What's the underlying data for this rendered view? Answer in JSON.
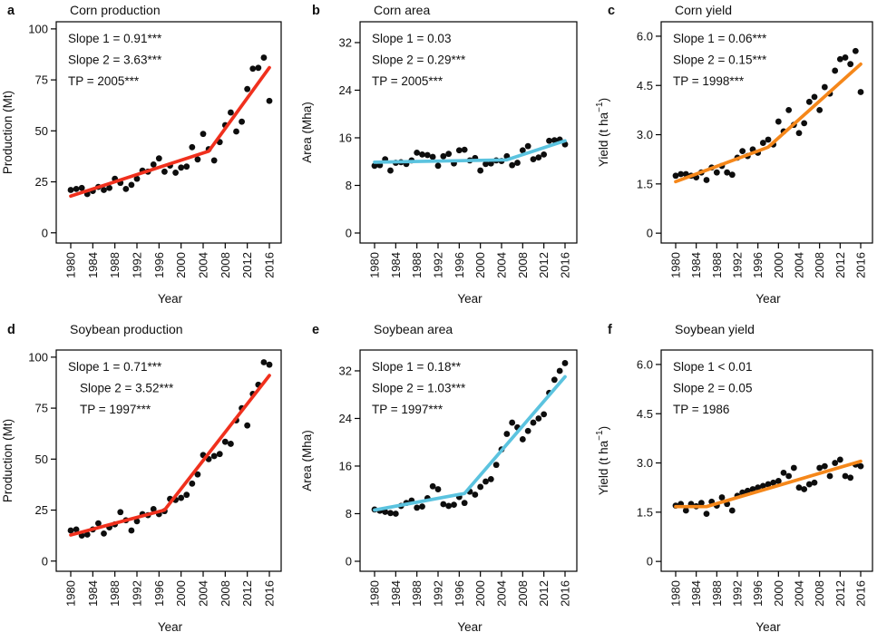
{
  "chart_data": {
    "type": "scatter",
    "description": "Six-panel figure of segmented-regression trends, 1980-2016",
    "point_color": "#0d0d0d",
    "years": [
      1980,
      1981,
      1982,
      1983,
      1984,
      1985,
      1986,
      1987,
      1988,
      1989,
      1990,
      1991,
      1992,
      1993,
      1994,
      1995,
      1996,
      1997,
      1998,
      1999,
      2000,
      2001,
      2002,
      2003,
      2004,
      2005,
      2006,
      2007,
      2008,
      2009,
      2010,
      2011,
      2012,
      2013,
      2014,
      2015,
      2016
    ],
    "x_ticks": [
      1980,
      1984,
      1988,
      1992,
      1996,
      2000,
      2004,
      2008,
      2012,
      2016
    ],
    "panels": [
      {
        "letter": "a",
        "title": "Corn production",
        "xlabel": "Year",
        "ylabel": {
          "pre": "Production (Mt)",
          "sup": "",
          "post": ""
        },
        "annotations": [
          {
            "text": "Slope 1 = 0.91***",
            "indent": 0
          },
          {
            "text": "Slope 2 = 3.63***",
            "indent": 0
          },
          {
            "text": "TP = 2005***",
            "indent": 0
          }
        ],
        "line_color": "#f0301d",
        "ylim": [
          -5,
          103.5
        ],
        "yticks": [
          0,
          25,
          50,
          75,
          100
        ],
        "ytick_labels": [
          "0",
          "25",
          "50",
          "75",
          "100"
        ],
        "values": [
          21,
          21.5,
          22,
          19,
          20.5,
          22.5,
          21,
          22,
          26.5,
          24.5,
          21.5,
          23.5,
          26.5,
          30.5,
          30,
          33.5,
          36.5,
          30,
          33,
          29.5,
          32,
          32.5,
          42,
          36,
          48.5,
          41,
          35.5,
          44.5,
          52.8,
          59,
          49.7,
          54.5,
          70.5,
          80.5,
          80.9,
          85.9,
          64.7
        ],
        "trend": [
          [
            1980,
            18
          ],
          [
            2005,
            40
          ],
          [
            2016,
            81
          ]
        ]
      },
      {
        "letter": "b",
        "title": "Corn area",
        "xlabel": "Year",
        "ylabel": {
          "pre": "Area (Mha)",
          "sup": "",
          "post": ""
        },
        "annotations": [
          {
            "text": "Slope 1 = 0.03",
            "indent": 0
          },
          {
            "text": "Slope 2 = 0.29***",
            "indent": 0
          },
          {
            "text": "TP = 2005***",
            "indent": 0
          }
        ],
        "line_color": "#5bc3df",
        "ylim": [
          -1.68,
          35.5
        ],
        "yticks": [
          0,
          8,
          16,
          24,
          32
        ],
        "ytick_labels": [
          "0",
          "8",
          "16",
          "24",
          "32"
        ],
        "values": [
          11.3,
          11.4,
          12.4,
          10.5,
          11.8,
          11.9,
          11.6,
          12.2,
          13.5,
          13.2,
          13.1,
          12.8,
          11.3,
          12.9,
          13.3,
          11.7,
          13.9,
          14.0,
          12.2,
          12.6,
          10.5,
          11.6,
          11.7,
          12.2,
          12.1,
          12.9,
          11.4,
          11.8,
          13.9,
          14.6,
          12.4,
          12.7,
          13.2,
          15.5,
          15.6,
          15.7,
          14.9
        ],
        "trend": [
          [
            1980,
            11.9
          ],
          [
            2005,
            12.3
          ],
          [
            2016,
            15.5
          ]
        ]
      },
      {
        "letter": "c",
        "title": "Corn yield",
        "xlabel": "Year",
        "ylabel": {
          "pre": "Yield (t ha",
          "sup": "−1",
          "post": ")"
        },
        "annotations": [
          {
            "text": "Slope 1 = 0.06***",
            "indent": 0
          },
          {
            "text": "Slope 2 = 0.15***",
            "indent": 0
          },
          {
            "text": "TP = 1998***",
            "indent": 0
          }
        ],
        "line_color": "#f5871a",
        "ylim": [
          -0.3,
          6.44
        ],
        "yticks": [
          0,
          1.5,
          3.0,
          4.5,
          6.0
        ],
        "ytick_labels": [
          "0",
          "1.5",
          "3.0",
          "4.5",
          "6.0"
        ],
        "values": [
          1.75,
          1.8,
          1.8,
          1.75,
          1.7,
          1.85,
          1.62,
          2.0,
          1.85,
          2.05,
          1.85,
          1.78,
          2.3,
          2.5,
          2.35,
          2.55,
          2.45,
          2.75,
          2.85,
          2.7,
          3.4,
          3.1,
          3.75,
          3.3,
          3.05,
          3.35,
          4.0,
          4.15,
          3.75,
          4.45,
          4.25,
          4.95,
          5.3,
          5.35,
          5.15,
          5.55,
          4.3
        ],
        "trend": [
          [
            1980,
            1.57
          ],
          [
            1998,
            2.62
          ],
          [
            2016,
            5.15
          ]
        ]
      },
      {
        "letter": "d",
        "title": "Soybean production",
        "xlabel": "Year",
        "ylabel": {
          "pre": "Production (Mt)",
          "sup": "",
          "post": ""
        },
        "annotations": [
          {
            "text": "Slope 1 = 0.71***",
            "indent": 0
          },
          {
            "text": "Slope 2 = 3.52***",
            "indent": 13
          },
          {
            "text": "TP = 1997***",
            "indent": 13
          }
        ],
        "line_color": "#f0301d",
        "ylim": [
          -5,
          103.5
        ],
        "yticks": [
          0,
          25,
          50,
          75,
          100
        ],
        "ytick_labels": [
          "0",
          "25",
          "50",
          "75",
          "100"
        ],
        "values": [
          15,
          15.5,
          12.5,
          13,
          15.5,
          18.5,
          13.5,
          16.5,
          18,
          24,
          20,
          15,
          19.5,
          23,
          22.5,
          25.5,
          23,
          24.5,
          30.5,
          30,
          31,
          32.5,
          38,
          42.5,
          52,
          50,
          51.5,
          52.5,
          58.5,
          57.5,
          69,
          75,
          66.5,
          82,
          86.5,
          97.5,
          96.3
        ],
        "trend": [
          [
            1980,
            12.8
          ],
          [
            1997,
            25
          ],
          [
            2016,
            91
          ]
        ]
      },
      {
        "letter": "e",
        "title": "Soybean area",
        "xlabel": "Year",
        "ylabel": {
          "pre": "Area (Mha)",
          "sup": "",
          "post": ""
        },
        "annotations": [
          {
            "text": "Slope 1 = 0.18**",
            "indent": 0
          },
          {
            "text": "Slope 2 = 1.03***",
            "indent": 0
          },
          {
            "text": "TP = 1997***",
            "indent": 0
          }
        ],
        "line_color": "#5bc3df",
        "ylim": [
          -1.68,
          35.5
        ],
        "yticks": [
          0,
          8,
          16,
          24,
          32
        ],
        "ytick_labels": [
          "0",
          "8",
          "16",
          "24",
          "32"
        ],
        "values": [
          8.7,
          8.5,
          8.3,
          8.1,
          8.0,
          9.3,
          9.8,
          10.2,
          9.0,
          9.2,
          10.6,
          12.6,
          12.1,
          9.6,
          9.3,
          9.5,
          10.8,
          9.8,
          11.7,
          11.2,
          12.5,
          13.4,
          13.8,
          16.2,
          18.8,
          21.4,
          23.3,
          22.5,
          20.5,
          21.9,
          23.3,
          24.0,
          24.7,
          28.3,
          30.5,
          32.0,
          33.3
        ],
        "trend": [
          [
            1980,
            8.6
          ],
          [
            1997,
            11.4
          ],
          [
            2016,
            31
          ]
        ]
      },
      {
        "letter": "f",
        "title": "Soybean yield",
        "xlabel": "Year",
        "ylabel": {
          "pre": "Yield (t ha",
          "sup": "−1",
          "post": ")"
        },
        "annotations": [
          {
            "text": "Slope 1 < 0.01",
            "indent": 0
          },
          {
            "text": "Slope 2 = 0.05",
            "indent": 0
          },
          {
            "text": "TP = 1986",
            "indent": 0
          }
        ],
        "line_color": "#f5871a",
        "ylim": [
          -0.3,
          6.44
        ],
        "yticks": [
          0,
          1.5,
          3.0,
          4.5,
          6.0
        ],
        "ytick_labels": [
          "0",
          "1.5",
          "3.0",
          "4.5",
          "6.0"
        ],
        "values": [
          1.7,
          1.75,
          1.55,
          1.75,
          1.68,
          1.78,
          1.45,
          1.82,
          1.7,
          1.95,
          1.75,
          1.55,
          2.0,
          2.1,
          2.15,
          2.2,
          2.25,
          2.3,
          2.35,
          2.4,
          2.45,
          2.7,
          2.6,
          2.85,
          2.25,
          2.2,
          2.35,
          2.4,
          2.85,
          2.9,
          2.6,
          3.0,
          3.1,
          2.6,
          2.55,
          2.95,
          2.9
        ],
        "trend": [
          [
            1980,
            1.67
          ],
          [
            1986,
            1.67
          ],
          [
            2016,
            3.05
          ]
        ]
      }
    ]
  }
}
